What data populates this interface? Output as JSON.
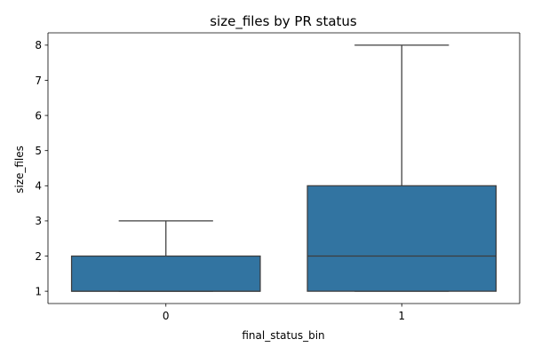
{
  "chart_data": {
    "type": "box",
    "title": "size_files by PR status",
    "xlabel": "final_status_bin",
    "ylabel": "size_files",
    "categories": [
      "0",
      "1"
    ],
    "boxes": [
      {
        "category": "0",
        "whisker_low": 1,
        "q1": 1,
        "median": 1,
        "q3": 2,
        "whisker_high": 3
      },
      {
        "category": "1",
        "whisker_low": 1,
        "q1": 1,
        "median": 2,
        "q3": 4,
        "whisker_high": 8
      }
    ],
    "yticks": [
      1,
      2,
      3,
      4,
      5,
      6,
      7,
      8
    ],
    "ylim": [
      0.65,
      8.35
    ],
    "grid": false,
    "colors": {
      "box_fill": "#3274a1",
      "line": "#3d3d3d",
      "axis": "#000000"
    }
  }
}
